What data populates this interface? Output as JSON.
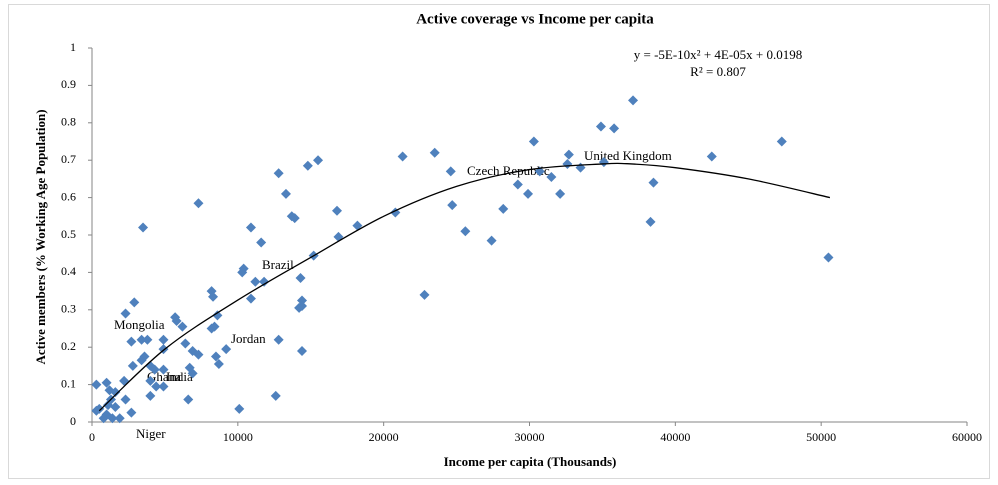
{
  "chart_data": {
    "type": "scatter",
    "title": "Active coverage vs Income per capita",
    "x_label": "Income per capita  (Thousands)",
    "y_label": "Active members (% Working Age Population)",
    "xlim": [
      0,
      60000
    ],
    "xticks": [
      0,
      10000,
      20000,
      30000,
      40000,
      50000,
      60000
    ],
    "ylim": [
      0,
      1
    ],
    "yticks": [
      0,
      0.1,
      0.2,
      0.3,
      0.4,
      0.5,
      0.6,
      0.7,
      0.8,
      0.9,
      1
    ],
    "grid": false,
    "color": "#4f81bd",
    "x": [
      37100,
      34900,
      35800,
      47300,
      30300,
      42500,
      21300,
      23500,
      32700,
      35100,
      33500,
      32600,
      30700,
      31500,
      24600,
      29200,
      29900,
      32100,
      38500,
      38300,
      50500,
      24700,
      28200,
      25600,
      27400,
      22800,
      20800,
      18200,
      16800,
      16900,
      15500,
      14800,
      12800,
      13300,
      13700,
      13900,
      15200,
      14300,
      14400,
      14400,
      14200,
      14400,
      7300,
      10900,
      11600,
      11800,
      11200,
      10400,
      10300,
      10900,
      8200,
      8300,
      8600,
      8400,
      8200,
      5800,
      6200,
      5700,
      6400,
      6900,
      7300,
      9200,
      8500,
      8700,
      12800,
      12600,
      10100,
      6700,
      6900,
      6600,
      3500,
      2900,
      2300,
      2700,
      3400,
      3800,
      4900,
      4900,
      3600,
      3400,
      2800,
      4000,
      4300,
      4900,
      4000,
      4400,
      4900,
      4000,
      2200,
      1000,
      300,
      1200,
      1600,
      1100,
      1600,
      2300,
      2700,
      1000,
      500,
      1400,
      800,
      1900,
      300,
      1300
    ],
    "values": [
      0.86,
      0.79,
      0.785,
      0.75,
      0.75,
      0.71,
      0.71,
      0.72,
      0.715,
      0.695,
      0.68,
      0.69,
      0.67,
      0.655,
      0.67,
      0.635,
      0.61,
      0.61,
      0.64,
      0.535,
      0.44,
      0.58,
      0.57,
      0.51,
      0.485,
      0.34,
      0.56,
      0.525,
      0.565,
      0.495,
      0.7,
      0.685,
      0.665,
      0.61,
      0.55,
      0.545,
      0.445,
      0.385,
      0.325,
      0.31,
      0.305,
      0.19,
      0.585,
      0.52,
      0.48,
      0.375,
      0.375,
      0.41,
      0.4,
      0.33,
      0.35,
      0.335,
      0.285,
      0.255,
      0.25,
      0.27,
      0.255,
      0.28,
      0.21,
      0.19,
      0.18,
      0.195,
      0.175,
      0.155,
      0.22,
      0.07,
      0.035,
      0.145,
      0.13,
      0.06,
      0.52,
      0.32,
      0.29,
      0.215,
      0.22,
      0.22,
      0.22,
      0.195,
      0.175,
      0.165,
      0.15,
      0.15,
      0.14,
      0.14,
      0.11,
      0.095,
      0.095,
      0.07,
      0.11,
      0.105,
      0.1,
      0.085,
      0.08,
      0.045,
      0.04,
      0.06,
      0.025,
      0.02,
      0.035,
      0.01,
      0.01,
      0.01,
      0.03,
      0.06
    ],
    "trendline": {
      "x": [
        500,
        5000,
        10000,
        15000,
        20000,
        25000,
        30000,
        35000,
        37000,
        40000,
        45000,
        50600
      ],
      "values": [
        0.03,
        0.195,
        0.326,
        0.44,
        0.55,
        0.63,
        0.675,
        0.69,
        0.69,
        0.68,
        0.65,
        0.6
      ],
      "color": "#000000",
      "equation": "y = -5E-10x² + 4E-05x + 0.0198",
      "r2": "R² = 0.807"
    },
    "annotations": [
      "United Kingdom",
      "Czech Republic",
      "Brazil",
      "Mongolia",
      "Jordan",
      "Ghana",
      "India",
      "Niger"
    ]
  }
}
